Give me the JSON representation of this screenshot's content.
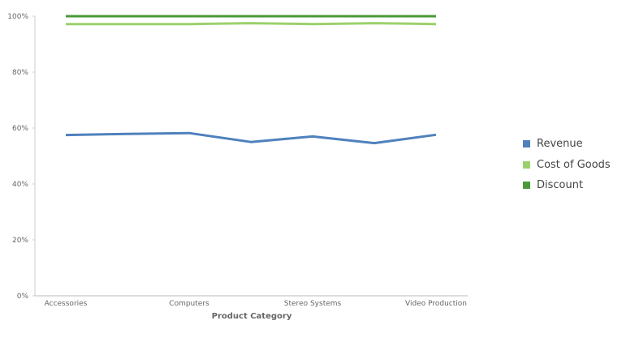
{
  "chart_data": {
    "type": "line",
    "title": "",
    "xlabel": "Product Category",
    "ylabel": "",
    "ylim": [
      0,
      100
    ],
    "yticks": [
      "0%",
      "20%",
      "40%",
      "60%",
      "80%",
      "100%"
    ],
    "x_tick_labels": [
      "Accessories",
      "Computers",
      "Stereo Systems",
      "Video Production"
    ],
    "grid": false,
    "legend_position": "right",
    "series": [
      {
        "name": "Revenue",
        "color": "#4f81bd",
        "values": [
          57.5,
          57.9,
          58.2,
          55.0,
          57.0,
          54.6,
          57.6
        ]
      },
      {
        "name": "Cost of Goods",
        "color": "#9bd16b",
        "values": [
          97.2,
          97.2,
          97.2,
          97.5,
          97.2,
          97.5,
          97.2
        ]
      },
      {
        "name": "Discount",
        "color": "#4a9a3a",
        "values": [
          100,
          100,
          100,
          100,
          100,
          100,
          100
        ]
      }
    ]
  }
}
